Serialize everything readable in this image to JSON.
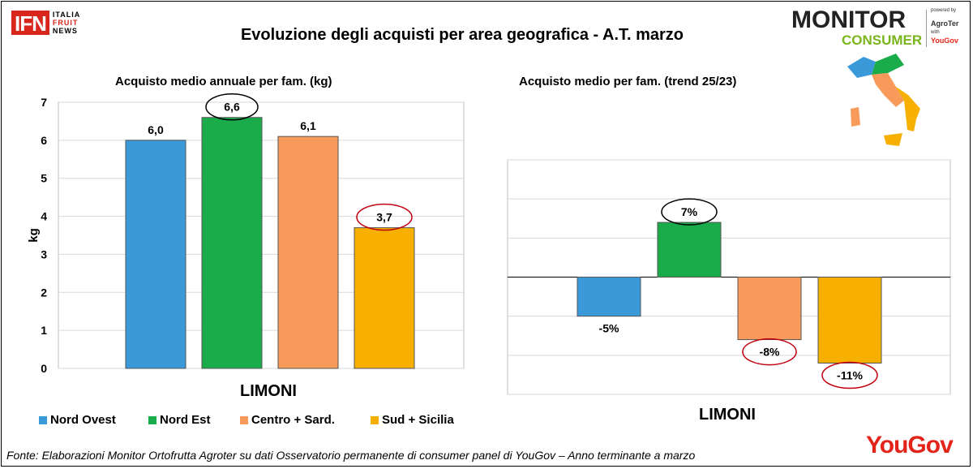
{
  "header": {
    "ifn_logo": {
      "box": "IFN",
      "line1": "ITALIA",
      "line2": "FRUIT",
      "line3": "NEWS"
    },
    "title": "Evoluzione degli acquisti per area geografica - A.T. marzo",
    "monitor_logo": {
      "monitor": "MONITOR",
      "consumer": "CONSUMER",
      "powered": "powered by",
      "agroter": "AgroTer",
      "with": "with",
      "yougov": "YouGov"
    }
  },
  "colors": {
    "nord_ovest": "#3a9ad9",
    "nord_est": "#1aab4a",
    "centro": "#f79a5a",
    "sud": "#f7b000",
    "highlight_red": "#c0000f"
  },
  "chart_data": [
    {
      "type": "bar",
      "title": "Acquisto medio annuale per fam. (kg)",
      "ylabel": "kg",
      "xlabel": "LIMONI",
      "ylim": [
        0,
        7
      ],
      "yticks": [
        "0",
        "1",
        "2",
        "3",
        "4",
        "5",
        "6",
        "7"
      ],
      "grid": true,
      "legend_position": "bottom",
      "categories": [
        "Nord Ovest",
        "Nord Est",
        "Centro + Sard.",
        "Sud + Sicilia"
      ],
      "values": [
        6.0,
        6.6,
        6.1,
        3.7
      ],
      "labels": [
        "6,0",
        "6,6",
        "6,1",
        "3,7"
      ]
    },
    {
      "type": "bar",
      "title": "Acquisto medio per fam. (trend 25/23)",
      "xlabel": "LIMONI",
      "ylim": [
        -15,
        15
      ],
      "grid": true,
      "categories": [
        "Nord Ovest",
        "Nord Est",
        "Centro + Sard.",
        "Sud + Sicilia"
      ],
      "values": [
        -5,
        7,
        -8,
        -11
      ],
      "labels": [
        "-5%",
        "7%",
        "-8%",
        "-11%"
      ]
    }
  ],
  "legend": [
    "Nord Ovest",
    "Nord Est",
    "Centro + Sard.",
    "Sud + Sicilia"
  ],
  "footnote": "Fonte: Elaborazioni Monitor Ortofrutta Agroter su dati Osservatorio permanente di consumer panel di YouGov – Anno terminante a marzo",
  "footer_logo": "YouGov"
}
